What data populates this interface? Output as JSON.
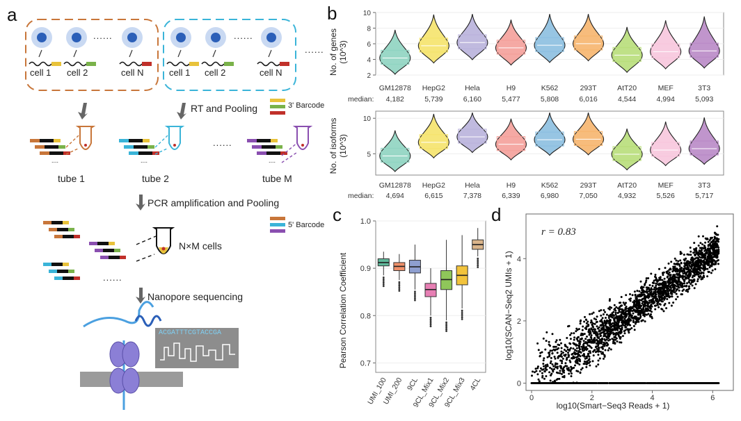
{
  "panels": {
    "a": "a",
    "b": "b",
    "c": "c",
    "d": "d"
  },
  "panel_a": {
    "group1_cells": [
      "cell 1",
      "cell 2",
      "cell N"
    ],
    "group2_cells": [
      "cell 1",
      "cell 2",
      "cell N"
    ],
    "ellipsis": "......",
    "step1": "RT and Pooling",
    "barcode3": "3' Barcode",
    "tubes": [
      "tube 1",
      "tube 2",
      "tube M"
    ],
    "step2": "PCR amplification and Pooling",
    "barcode5": "5' Barcode",
    "cells_label": "N×M cells",
    "step3": "Nanopore sequencing",
    "sequence": "ACGATTTCGTACCGA",
    "colors": {
      "orange": "#c8763a",
      "blue": "#3ab4d8",
      "purple": "#8a4fb0",
      "yellow": "#e8c23a",
      "green": "#7ab24a",
      "red": "#c0302a",
      "black": "#111111"
    }
  },
  "chart_data": [
    {
      "type": "violin",
      "ylabel": "No. of genes (10^3)",
      "ylim": [
        2,
        10
      ],
      "yticks": [
        2,
        4,
        6,
        8,
        10
      ],
      "categories": [
        "GM12878",
        "HepG2",
        "Hela",
        "H9",
        "K562",
        "293T",
        "AtT20",
        "MEF",
        "3T3"
      ],
      "median_label": "median:",
      "medians": [
        "4,182",
        "5,739",
        "6,160",
        "5,477",
        "5,808",
        "6,016",
        "4,544",
        "4,994",
        "5,093"
      ],
      "values": [
        4.182,
        5.739,
        6.16,
        5.477,
        5.808,
        6.016,
        4.544,
        4.994,
        5.093
      ],
      "colors": [
        "#8fd4c1",
        "#f5e36b",
        "#b9b3dc",
        "#f4a09a",
        "#8cbfe0",
        "#f6b56e",
        "#b8de7a",
        "#f7c6dd",
        "#b98ac6"
      ]
    },
    {
      "type": "violin",
      "ylabel": "No. of isoforms (10^3)",
      "ylim": [
        2,
        11
      ],
      "yticks": [
        5,
        10
      ],
      "categories": [
        "GM12878",
        "HepG2",
        "Hela",
        "H9",
        "K562",
        "293T",
        "AtT20",
        "MEF",
        "3T3"
      ],
      "median_label": "median:",
      "medians": [
        "4,694",
        "6,615",
        "7,378",
        "6,339",
        "6,980",
        "7,050",
        "4,932",
        "5,526",
        "5,717"
      ],
      "values": [
        4.694,
        6.615,
        7.378,
        6.339,
        6.98,
        7.05,
        4.932,
        5.526,
        5.717
      ],
      "colors": [
        "#8fd4c1",
        "#f5e36b",
        "#b9b3dc",
        "#f4a09a",
        "#8cbfe0",
        "#f6b56e",
        "#b8de7a",
        "#f7c6dd",
        "#b98ac6"
      ]
    },
    {
      "type": "box",
      "ylabel": "Pearson Correlation Coefficient",
      "ylim": [
        0.68,
        1.0
      ],
      "yticks": [
        0.7,
        0.8,
        0.9,
        1.0
      ],
      "ytick_labels": [
        "0.7",
        "0.8",
        "0.9",
        "1.0"
      ],
      "categories": [
        "UMI_100",
        "UMI_200",
        "9CL",
        "9CL_Mix1",
        "9CL_Mix2",
        "9CL_Mix3",
        "4CL"
      ],
      "boxes": [
        {
          "q1": 0.905,
          "median": 0.912,
          "q3": 0.92,
          "lo": 0.885,
          "hi": 0.935
        },
        {
          "q1": 0.895,
          "median": 0.904,
          "q3": 0.912,
          "lo": 0.875,
          "hi": 0.93
        },
        {
          "q1": 0.89,
          "median": 0.903,
          "q3": 0.917,
          "lo": 0.855,
          "hi": 0.95
        },
        {
          "q1": 0.84,
          "median": 0.855,
          "q3": 0.868,
          "lo": 0.8,
          "hi": 0.9
        },
        {
          "q1": 0.855,
          "median": 0.876,
          "q3": 0.895,
          "lo": 0.79,
          "hi": 0.96
        },
        {
          "q1": 0.865,
          "median": 0.885,
          "q3": 0.905,
          "lo": 0.815,
          "hi": 0.97
        },
        {
          "q1": 0.94,
          "median": 0.95,
          "q3": 0.96,
          "lo": 0.925,
          "hi": 0.985
        }
      ],
      "colors": [
        "#5fb89a",
        "#f0916a",
        "#8e9fd0",
        "#e77fb4",
        "#8fc65a",
        "#f2c33c",
        "#d9b48a"
      ]
    },
    {
      "type": "scatter",
      "annotation": "r = 0.83",
      "xlabel": "log10(Smart−Seq3 Reads + 1)",
      "ylabel": "log10(SCAN−Seq2 UMIs + 1)",
      "xlim": [
        0,
        6.5
      ],
      "ylim": [
        -0.1,
        5.3
      ],
      "xticks": [
        0,
        2,
        4,
        6
      ],
      "yticks": [
        0,
        2,
        4
      ],
      "r": 0.83
    }
  ]
}
